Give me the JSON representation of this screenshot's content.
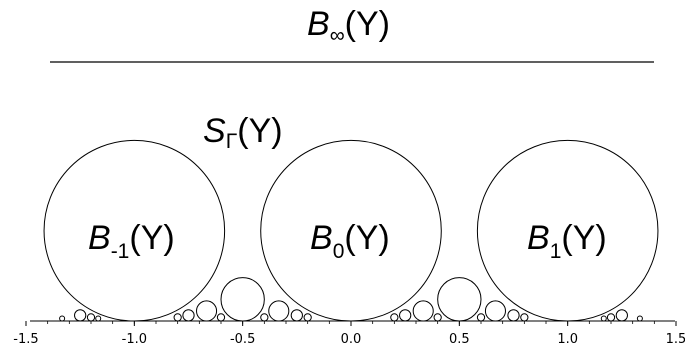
{
  "labels": {
    "b_inf_main": "B",
    "b_inf_sub": "∞",
    "b_inf_arg": "(Y)",
    "s_gamma_main": "S",
    "s_gamma_sub": "Γ",
    "s_gamma_arg": "(Y)",
    "b_m1_main": "B",
    "b_m1_sub": "-1",
    "b_m1_arg": "(Y)",
    "b_0_main": "B",
    "b_0_sub": "0",
    "b_0_arg": "(Y)",
    "b_1_main": "B",
    "b_1_sub": "1",
    "b_1_arg": "(Y)"
  },
  "axis": {
    "range": [
      -1.5,
      1.5
    ],
    "ticks": [
      {
        "value": -1.5,
        "label": "-1.5"
      },
      {
        "value": -1.0,
        "label": "-1.0"
      },
      {
        "value": -0.5,
        "label": "-0.5"
      },
      {
        "value": 0.0,
        "label": "0.0"
      },
      {
        "value": 0.5,
        "label": "0.5"
      },
      {
        "value": 1.0,
        "label": "1.0"
      },
      {
        "value": 1.5,
        "label": "1.5"
      }
    ]
  },
  "circles": [
    {
      "center": -1.0,
      "radius": 0.4167
    },
    {
      "center": 0.0,
      "radius": 0.4167
    },
    {
      "center": 1.0,
      "radius": 0.4167
    },
    {
      "center": -0.5,
      "radius": 0.1
    },
    {
      "center": 0.5,
      "radius": 0.1
    },
    {
      "center": -0.3333,
      "radius": 0.0463
    },
    {
      "center": -0.6667,
      "radius": 0.0463
    },
    {
      "center": 0.3333,
      "radius": 0.0463
    },
    {
      "center": 0.6667,
      "radius": 0.0463
    },
    {
      "center": -0.25,
      "radius": 0.026
    },
    {
      "center": -0.75,
      "radius": 0.026
    },
    {
      "center": 0.25,
      "radius": 0.026
    },
    {
      "center": 0.75,
      "radius": 0.026
    },
    {
      "center": -0.8,
      "radius": 0.0167
    },
    {
      "center": -0.2,
      "radius": 0.0167
    },
    {
      "center": 0.2,
      "radius": 0.0167
    },
    {
      "center": 0.8,
      "radius": 0.0167
    },
    {
      "center": -1.25,
      "radius": 0.026
    },
    {
      "center": 1.25,
      "radius": 0.026
    },
    {
      "center": -1.2,
      "radius": 0.0167
    },
    {
      "center": 1.2,
      "radius": 0.0167
    },
    {
      "center": -1.1667,
      "radius": 0.0116
    },
    {
      "center": 1.1667,
      "radius": 0.0116
    },
    {
      "center": -1.3333,
      "radius": 0.0116
    },
    {
      "center": 1.3333,
      "radius": 0.0116
    },
    {
      "center": -0.6,
      "radius": 0.0167
    },
    {
      "center": -0.4,
      "radius": 0.0167
    },
    {
      "center": 0.4,
      "radius": 0.0167
    },
    {
      "center": 0.6,
      "radius": 0.0167
    }
  ]
}
